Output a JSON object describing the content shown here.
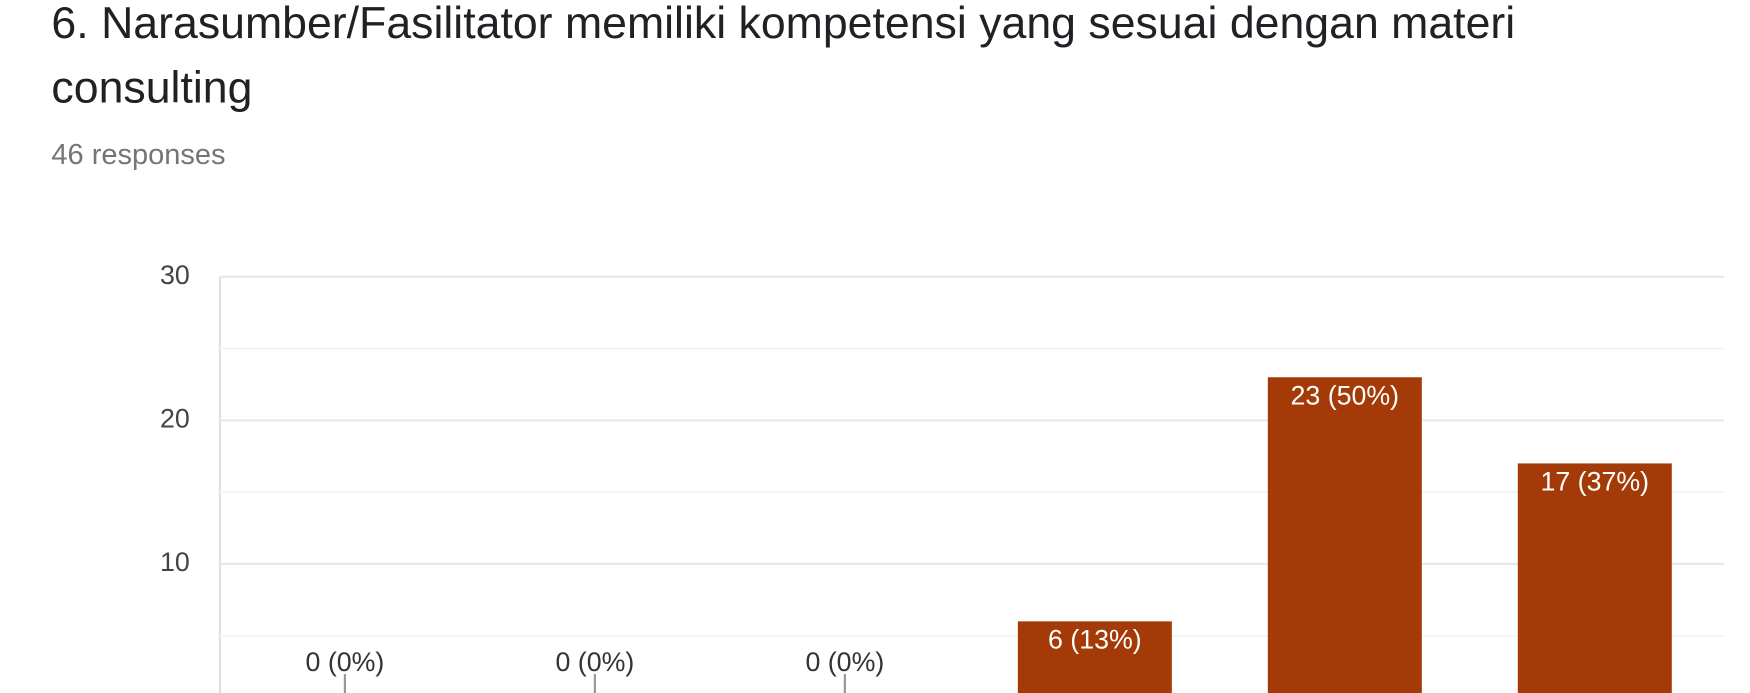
{
  "chart_data": {
    "type": "bar",
    "title": "6. Narasumber/Fasilitator memiliki kompetensi yang sesuai dengan materi consulting",
    "subtitle": "46 responses",
    "categories": [
      null,
      null,
      null,
      null,
      null,
      null
    ],
    "values": [
      0,
      0,
      0,
      6,
      23,
      17
    ],
    "value_labels": [
      "0 (0%)",
      "0 (0%)",
      "0 (0%)",
      "6 (13%)",
      "23 (50%)",
      "17 (37%)"
    ],
    "color": "#a33a07",
    "ylim": [
      0,
      30
    ],
    "yticks": [
      10,
      20,
      30
    ],
    "grid": true
  }
}
